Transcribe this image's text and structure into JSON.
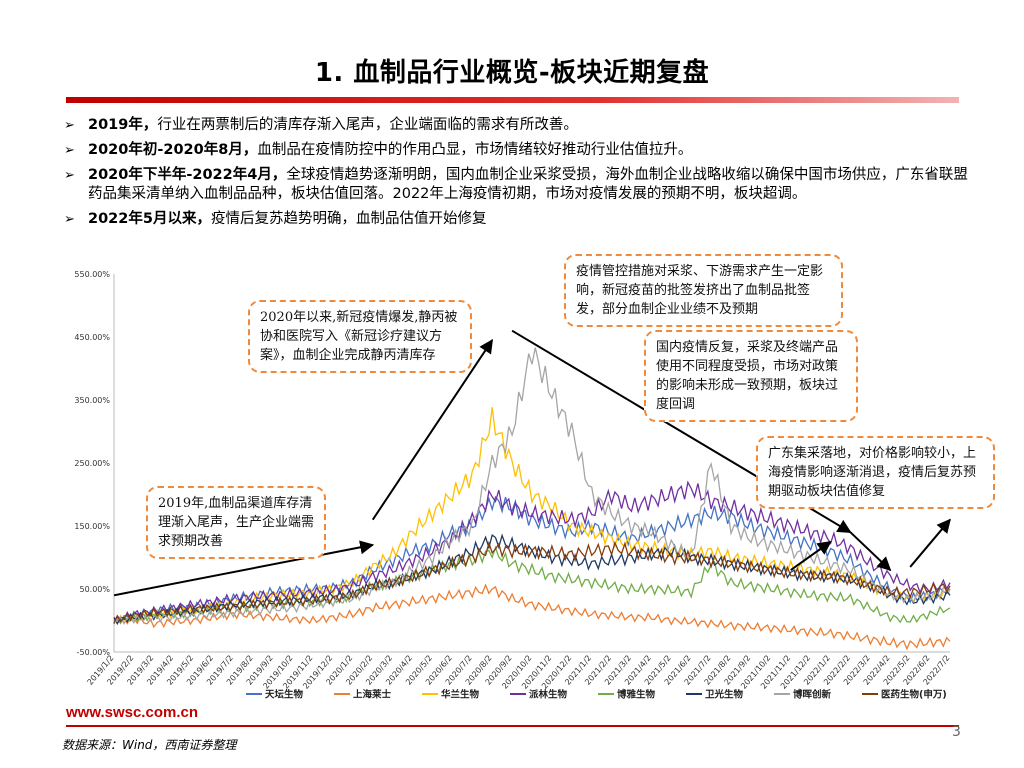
{
  "title": "1. 血制品行业概览-板块近期复盘",
  "bullets": [
    {
      "bold": "2019年，",
      "text": "行业在两票制后的清库存渐入尾声，企业端面临的需求有所改善。"
    },
    {
      "bold": "2020年初-2020年8月，",
      "text": "血制品在疫情防控中的作用凸显，市场情绪较好推动行业估值拉升。"
    },
    {
      "bold": "2020年下半年-2022年4月，",
      "text": "全球疫情趋势逐渐明朗，国内血制企业采浆受损，海外血制企业战略收缩以确保中国市场供应，广东省联盟药品集采清单纳入血制品品种，板块估值回落。2022年上海疫情初期，市场对疫情发展的预期不明，板块超调。"
    },
    {
      "bold": "2022年5月以来，",
      "text": "疫情后复苏趋势明确，血制品估值开始修复"
    }
  ],
  "callouts": {
    "c1": "2019年,血制品渠道库存清理渐入尾声，生产企业端需求预期改善",
    "c2": "2020年以来,新冠疫情爆发,静丙被协和医院写入《新冠诊疗建议方案》，血制企业完成静丙清库存",
    "c3": "疫情管控措施对采浆、下游需求产生一定影响，新冠疫苗的批签发挤出了血制品批签发，部分血制企业业绩不及预期",
    "c4": "国内疫情反复，采浆及终端产品使用不同程度受损，市场对政策的影响未形成一致预期，板块过度回调",
    "c5": "广东集采落地，对价格影响较小，上海疫情影响逐渐消退，疫情后复苏预期驱动板块估值修复"
  },
  "footer": {
    "url": "www.swsc.com.cn",
    "source": "数据来源：Wind，西南证券整理",
    "page": "3"
  },
  "chart_data": {
    "type": "line",
    "ylim": [
      -50,
      550
    ],
    "yticks": [
      "-50.00%",
      "50.00%",
      "150.00%",
      "250.00%",
      "350.00%",
      "450.00%",
      "550.00%"
    ],
    "ytick_values": [
      -50,
      50,
      150,
      250,
      350,
      450,
      550
    ],
    "x": [
      "2019/1/2",
      "2019/2/2",
      "2019/3/2",
      "2019/4/2",
      "2019/5/2",
      "2019/6/2",
      "2019/7/2",
      "2019/8/2",
      "2019/9/2",
      "2019/10/2",
      "2019/11/2",
      "2019/12/2",
      "2020/1/2",
      "2020/2/2",
      "2020/3/2",
      "2020/4/2",
      "2020/5/2",
      "2020/6/2",
      "2020/7/2",
      "2020/8/2",
      "2020/9/2",
      "2020/10/2",
      "2020/11/2",
      "2020/12/2",
      "2021/1/2",
      "2021/2/2",
      "2021/3/2",
      "2021/4/2",
      "2021/5/2",
      "2021/6/2",
      "2021/7/2",
      "2021/8/2",
      "2021/9/2",
      "2021/10/2",
      "2021/11/2",
      "2021/12/2",
      "2022/1/2",
      "2022/2/2",
      "2022/3/2",
      "2022/4/2",
      "2022/5/2",
      "2022/6/2",
      "2022/7/2"
    ],
    "series": [
      {
        "name": "天坛生物",
        "color": "#4472c4",
        "values": [
          0,
          8,
          15,
          20,
          22,
          28,
          35,
          40,
          45,
          48,
          50,
          52,
          60,
          80,
          95,
          110,
          120,
          140,
          150,
          190,
          180,
          160,
          150,
          140,
          150,
          140,
          130,
          140,
          150,
          160,
          170,
          165,
          150,
          140,
          130,
          120,
          110,
          95,
          70,
          50,
          35,
          40,
          50
        ]
      },
      {
        "name": "上海莱士",
        "color": "#ed7d31",
        "values": [
          0,
          2,
          -5,
          -2,
          0,
          5,
          10,
          8,
          5,
          2,
          0,
          5,
          10,
          20,
          25,
          30,
          35,
          40,
          45,
          50,
          35,
          25,
          20,
          15,
          10,
          8,
          5,
          5,
          0,
          -2,
          -5,
          -8,
          -10,
          -12,
          -15,
          -18,
          -20,
          -25,
          -30,
          -35,
          -38,
          -35,
          -33
        ]
      },
      {
        "name": "华兰生物",
        "color": "#ffc000",
        "values": [
          0,
          5,
          10,
          12,
          18,
          22,
          28,
          35,
          40,
          42,
          45,
          50,
          60,
          85,
          105,
          140,
          170,
          200,
          230,
          320,
          250,
          200,
          180,
          150,
          140,
          130,
          120,
          115,
          110,
          105,
          110,
          100,
          95,
          90,
          85,
          80,
          75,
          70,
          55,
          40,
          35,
          38,
          45
        ]
      },
      {
        "name": "派林生物",
        "color": "#7030a0",
        "values": [
          0,
          10,
          15,
          20,
          25,
          30,
          35,
          38,
          40,
          42,
          45,
          48,
          55,
          70,
          80,
          95,
          110,
          130,
          160,
          200,
          180,
          170,
          165,
          160,
          170,
          200,
          180,
          190,
          200,
          210,
          190,
          180,
          170,
          160,
          150,
          140,
          130,
          115,
          90,
          70,
          55,
          50,
          60
        ]
      },
      {
        "name": "博雅生物",
        "color": "#70ad47",
        "values": [
          0,
          3,
          8,
          10,
          12,
          18,
          20,
          22,
          25,
          28,
          30,
          32,
          40,
          55,
          60,
          70,
          80,
          90,
          95,
          110,
          90,
          80,
          70,
          65,
          60,
          55,
          50,
          50,
          48,
          45,
          90,
          60,
          55,
          50,
          45,
          40,
          38,
          35,
          20,
          5,
          0,
          10,
          20
        ]
      },
      {
        "name": "卫光生物",
        "color": "#1f3864",
        "values": [
          0,
          5,
          8,
          12,
          15,
          20,
          25,
          28,
          30,
          32,
          35,
          38,
          42,
          55,
          60,
          70,
          80,
          95,
          110,
          130,
          120,
          110,
          100,
          95,
          90,
          95,
          100,
          105,
          110,
          100,
          95,
          90,
          85,
          80,
          75,
          70,
          70,
          65,
          55,
          40,
          30,
          35,
          40
        ]
      },
      {
        "name": "博晖创新",
        "color": "#a5a5a5",
        "values": [
          0,
          2,
          5,
          5,
          8,
          10,
          12,
          15,
          18,
          20,
          25,
          30,
          35,
          50,
          60,
          80,
          100,
          130,
          150,
          250,
          300,
          430,
          360,
          300,
          200,
          170,
          150,
          140,
          120,
          100,
          250,
          150,
          130,
          120,
          110,
          100,
          90,
          80,
          60,
          40,
          35,
          40,
          50
        ]
      },
      {
        "name": "医药生物(申万)",
        "color": "#843c0c",
        "values": [
          0,
          8,
          12,
          15,
          18,
          20,
          22,
          25,
          28,
          30,
          32,
          35,
          40,
          55,
          60,
          70,
          80,
          90,
          100,
          115,
          110,
          110,
          108,
          105,
          110,
          115,
          110,
          105,
          100,
          100,
          95,
          90,
          85,
          80,
          75,
          72,
          70,
          65,
          55,
          45,
          45,
          50,
          55
        ]
      }
    ],
    "annotation_arrows": [
      {
        "from_x": "2019/1/2",
        "from_y": 40,
        "to_x": "2020/2/2",
        "to_y": 120
      },
      {
        "from_x": "2020/2/2",
        "from_y": 160,
        "to_x": "2020/8/2",
        "to_y": 445
      },
      {
        "from_x": "2020/9/2",
        "from_y": 460,
        "to_x": "2022/2/2",
        "to_y": 140
      },
      {
        "from_x": "2021/11/2",
        "from_y": 80,
        "to_x": "2022/1/2",
        "to_y": 125
      },
      {
        "from_x": "2022/2/2",
        "from_y": 140,
        "to_x": "2022/4/2",
        "to_y": 80
      },
      {
        "from_x": "2022/5/2",
        "from_y": 85,
        "to_x": "2022/7/2",
        "to_y": 160
      }
    ]
  }
}
